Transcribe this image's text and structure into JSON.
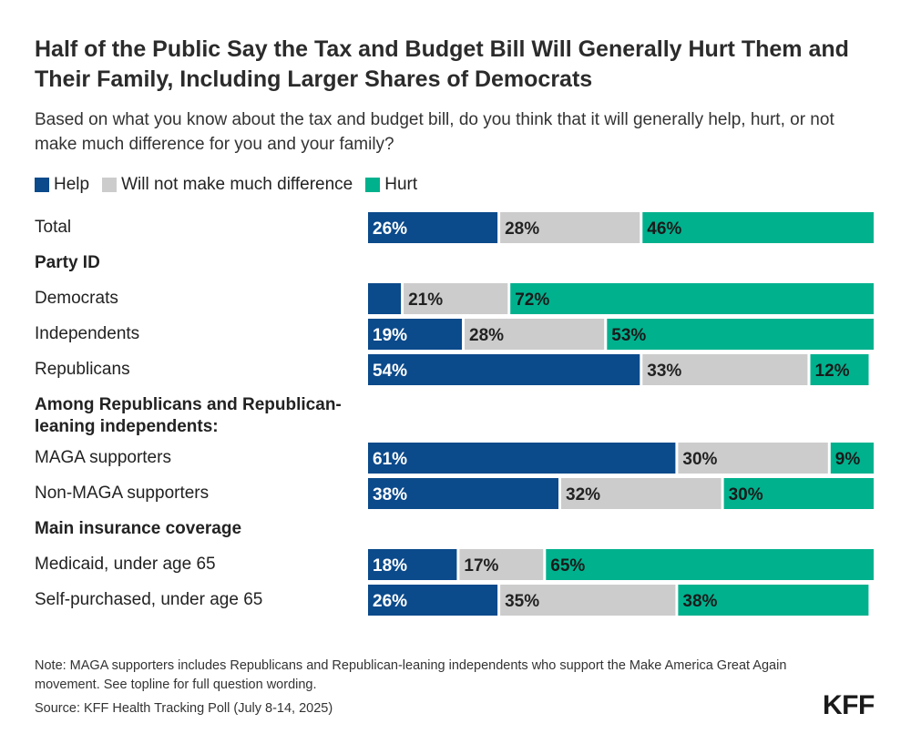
{
  "chart_data": {
    "type": "bar",
    "orientation": "horizontal",
    "stacked": true,
    "title": "Half of the Public Say the Tax and Budget Bill Will Generally Hurt Them and Their Family, Including Larger Shares of Democrats",
    "subtitle": "Based on what you know about the tax and budget bill, do you think that it will generally help, hurt, or not make much difference for you and your family?",
    "legend": [
      {
        "name": "Help",
        "color": "#0b4a8b"
      },
      {
        "name": "Will not make much difference",
        "color": "#cccccc"
      },
      {
        "name": "Hurt",
        "color": "#00b18e"
      }
    ],
    "xlim": [
      0,
      100
    ],
    "rows": [
      {
        "label": "Total",
        "header": false,
        "values": [
          26,
          28,
          46
        ],
        "labels": [
          "26%",
          "28%",
          "46%"
        ]
      },
      {
        "label": "Party ID",
        "header": true
      },
      {
        "label": "Democrats",
        "header": false,
        "values": [
          7,
          21,
          72
        ],
        "labels": [
          "",
          "21%",
          "72%"
        ]
      },
      {
        "label": "Independents",
        "header": false,
        "values": [
          19,
          28,
          53
        ],
        "labels": [
          "19%",
          "28%",
          "53%"
        ]
      },
      {
        "label": "Republicans",
        "header": false,
        "values": [
          54,
          33,
          12
        ],
        "labels": [
          "54%",
          "33%",
          "12%"
        ]
      },
      {
        "label": "Among Republicans and Republican-leaning independents:",
        "header": true,
        "tall": true
      },
      {
        "label": "MAGA supporters",
        "header": false,
        "values": [
          61,
          30,
          9
        ],
        "labels": [
          "61%",
          "30%",
          "9%"
        ]
      },
      {
        "label": "Non-MAGA supporters",
        "header": false,
        "values": [
          38,
          32,
          30
        ],
        "labels": [
          "38%",
          "32%",
          "30%"
        ]
      },
      {
        "label": "Main insurance coverage",
        "header": true
      },
      {
        "label": "Medicaid, under age 65",
        "header": false,
        "values": [
          18,
          17,
          65
        ],
        "labels": [
          "18%",
          "17%",
          "65%"
        ]
      },
      {
        "label": "Self-purchased, under age 65",
        "header": false,
        "values": [
          26,
          35,
          38
        ],
        "labels": [
          "26%",
          "35%",
          "38%"
        ]
      }
    ]
  },
  "footer": {
    "note": "Note: MAGA supporters includes Republicans and Republican-leaning independents who support the Make America Great Again movement. See topline for full question wording.",
    "source": "Source: KFF Health Tracking Poll (July 8-14, 2025)",
    "logo": "KFF"
  }
}
